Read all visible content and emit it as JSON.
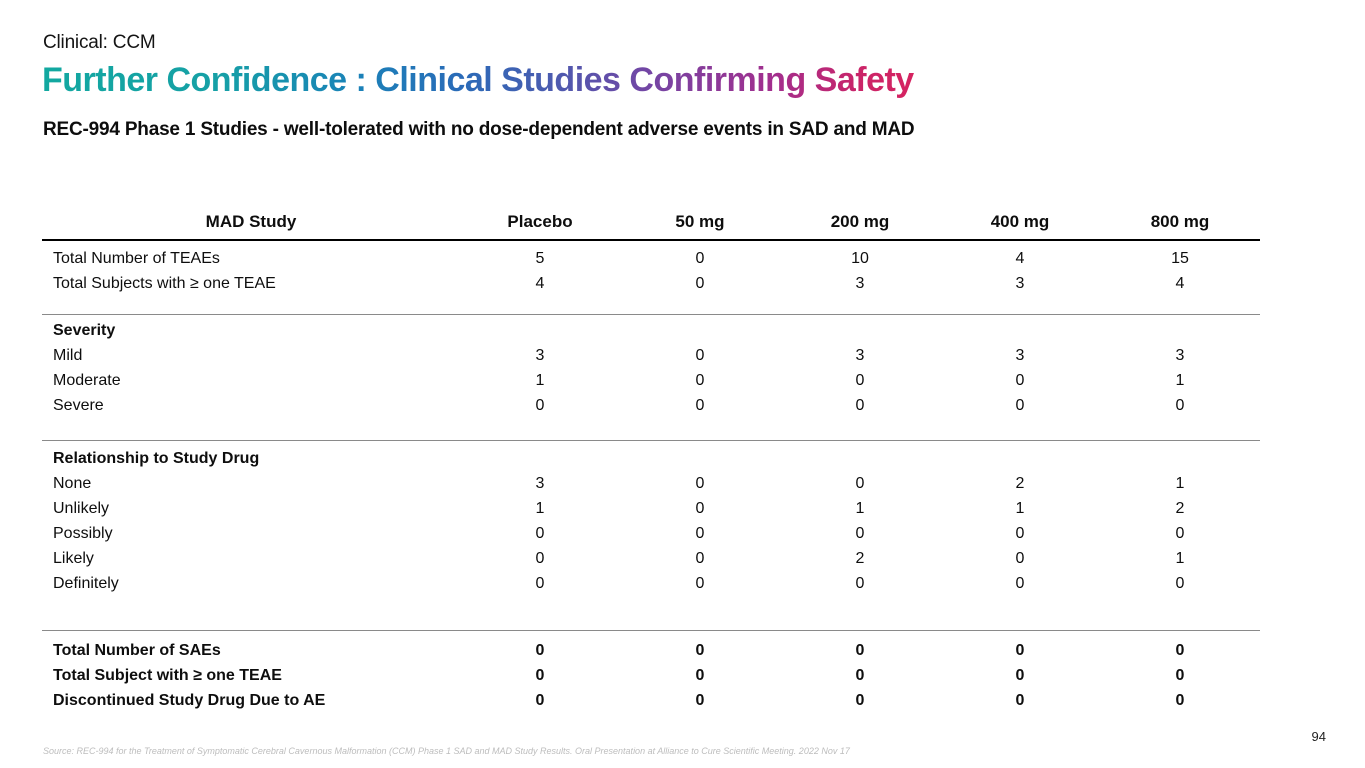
{
  "slide": {
    "eyebrow": "Clinical: CCM",
    "title": "Further Confidence : Clinical Studies Confirming Safety",
    "title_gradient_colors": [
      "#12A8A0",
      "#1A82B8",
      "#4A5CB0",
      "#7545A4",
      "#A32E8D",
      "#D62360"
    ],
    "subtitle": "REC-994 Phase 1 Studies - well-tolerated with no dose-dependent adverse events in SAD and MAD",
    "source": "Source: REC-994 for the Treatment of Symptomatic Cerebral Cavernous Malformation (CCM) Phase 1 SAD and MAD Study Results. Oral Presentation at Alliance to Cure Scientific Meeting. 2022 Nov 17",
    "page_number": "94"
  },
  "chart_data": {
    "type": "table",
    "title": "REC-994 Phase 1 MAD Study safety summary",
    "columns": [
      "MAD Study",
      "Placebo",
      "50 mg",
      "200 mg",
      "400 mg",
      "800 mg"
    ],
    "sections": [
      {
        "heading": null,
        "rows": [
          {
            "label": "Total Number of TEAEs",
            "values": [
              5,
              0,
              10,
              4,
              15
            ]
          },
          {
            "label": "Total Subjects with ≥ one TEAE",
            "values": [
              4,
              0,
              3,
              3,
              4
            ]
          }
        ]
      },
      {
        "heading": "Severity",
        "rows": [
          {
            "label": "Mild",
            "values": [
              3,
              0,
              3,
              3,
              3
            ]
          },
          {
            "label": "Moderate",
            "values": [
              1,
              0,
              0,
              0,
              1
            ]
          },
          {
            "label": "Severe",
            "values": [
              0,
              0,
              0,
              0,
              0
            ]
          }
        ]
      },
      {
        "heading": "Relationship to Study Drug",
        "rows": [
          {
            "label": "None",
            "values": [
              3,
              0,
              0,
              2,
              1
            ]
          },
          {
            "label": "Unlikely",
            "values": [
              1,
              0,
              1,
              1,
              2
            ]
          },
          {
            "label": "Possibly",
            "values": [
              0,
              0,
              0,
              0,
              0
            ]
          },
          {
            "label": "Likely",
            "values": [
              0,
              0,
              2,
              0,
              1
            ]
          },
          {
            "label": "Definitely",
            "values": [
              0,
              0,
              0,
              0,
              0
            ]
          }
        ]
      },
      {
        "heading": null,
        "rows": [
          {
            "label": "Total Number of SAEs",
            "values": [
              0,
              0,
              0,
              0,
              0
            ]
          },
          {
            "label": "Total Subject with ≥ one TEAE",
            "values": [
              0,
              0,
              0,
              0,
              0
            ]
          },
          {
            "label": "Discontinued Study Drug Due to AE",
            "values": [
              0,
              0,
              0,
              0,
              0
            ]
          }
        ]
      }
    ]
  }
}
